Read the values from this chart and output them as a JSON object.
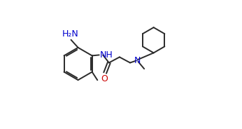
{
  "background_color": "#ffffff",
  "line_color": "#2a2a2a",
  "n_color": "#0000cd",
  "o_color": "#cc0000",
  "bond_width": 1.4,
  "font_size": 8.5,
  "figsize": [
    3.46,
    1.84
  ],
  "dpi": 100,
  "xlim": [
    0.0,
    1.0
  ],
  "ylim": [
    0.05,
    0.95
  ]
}
